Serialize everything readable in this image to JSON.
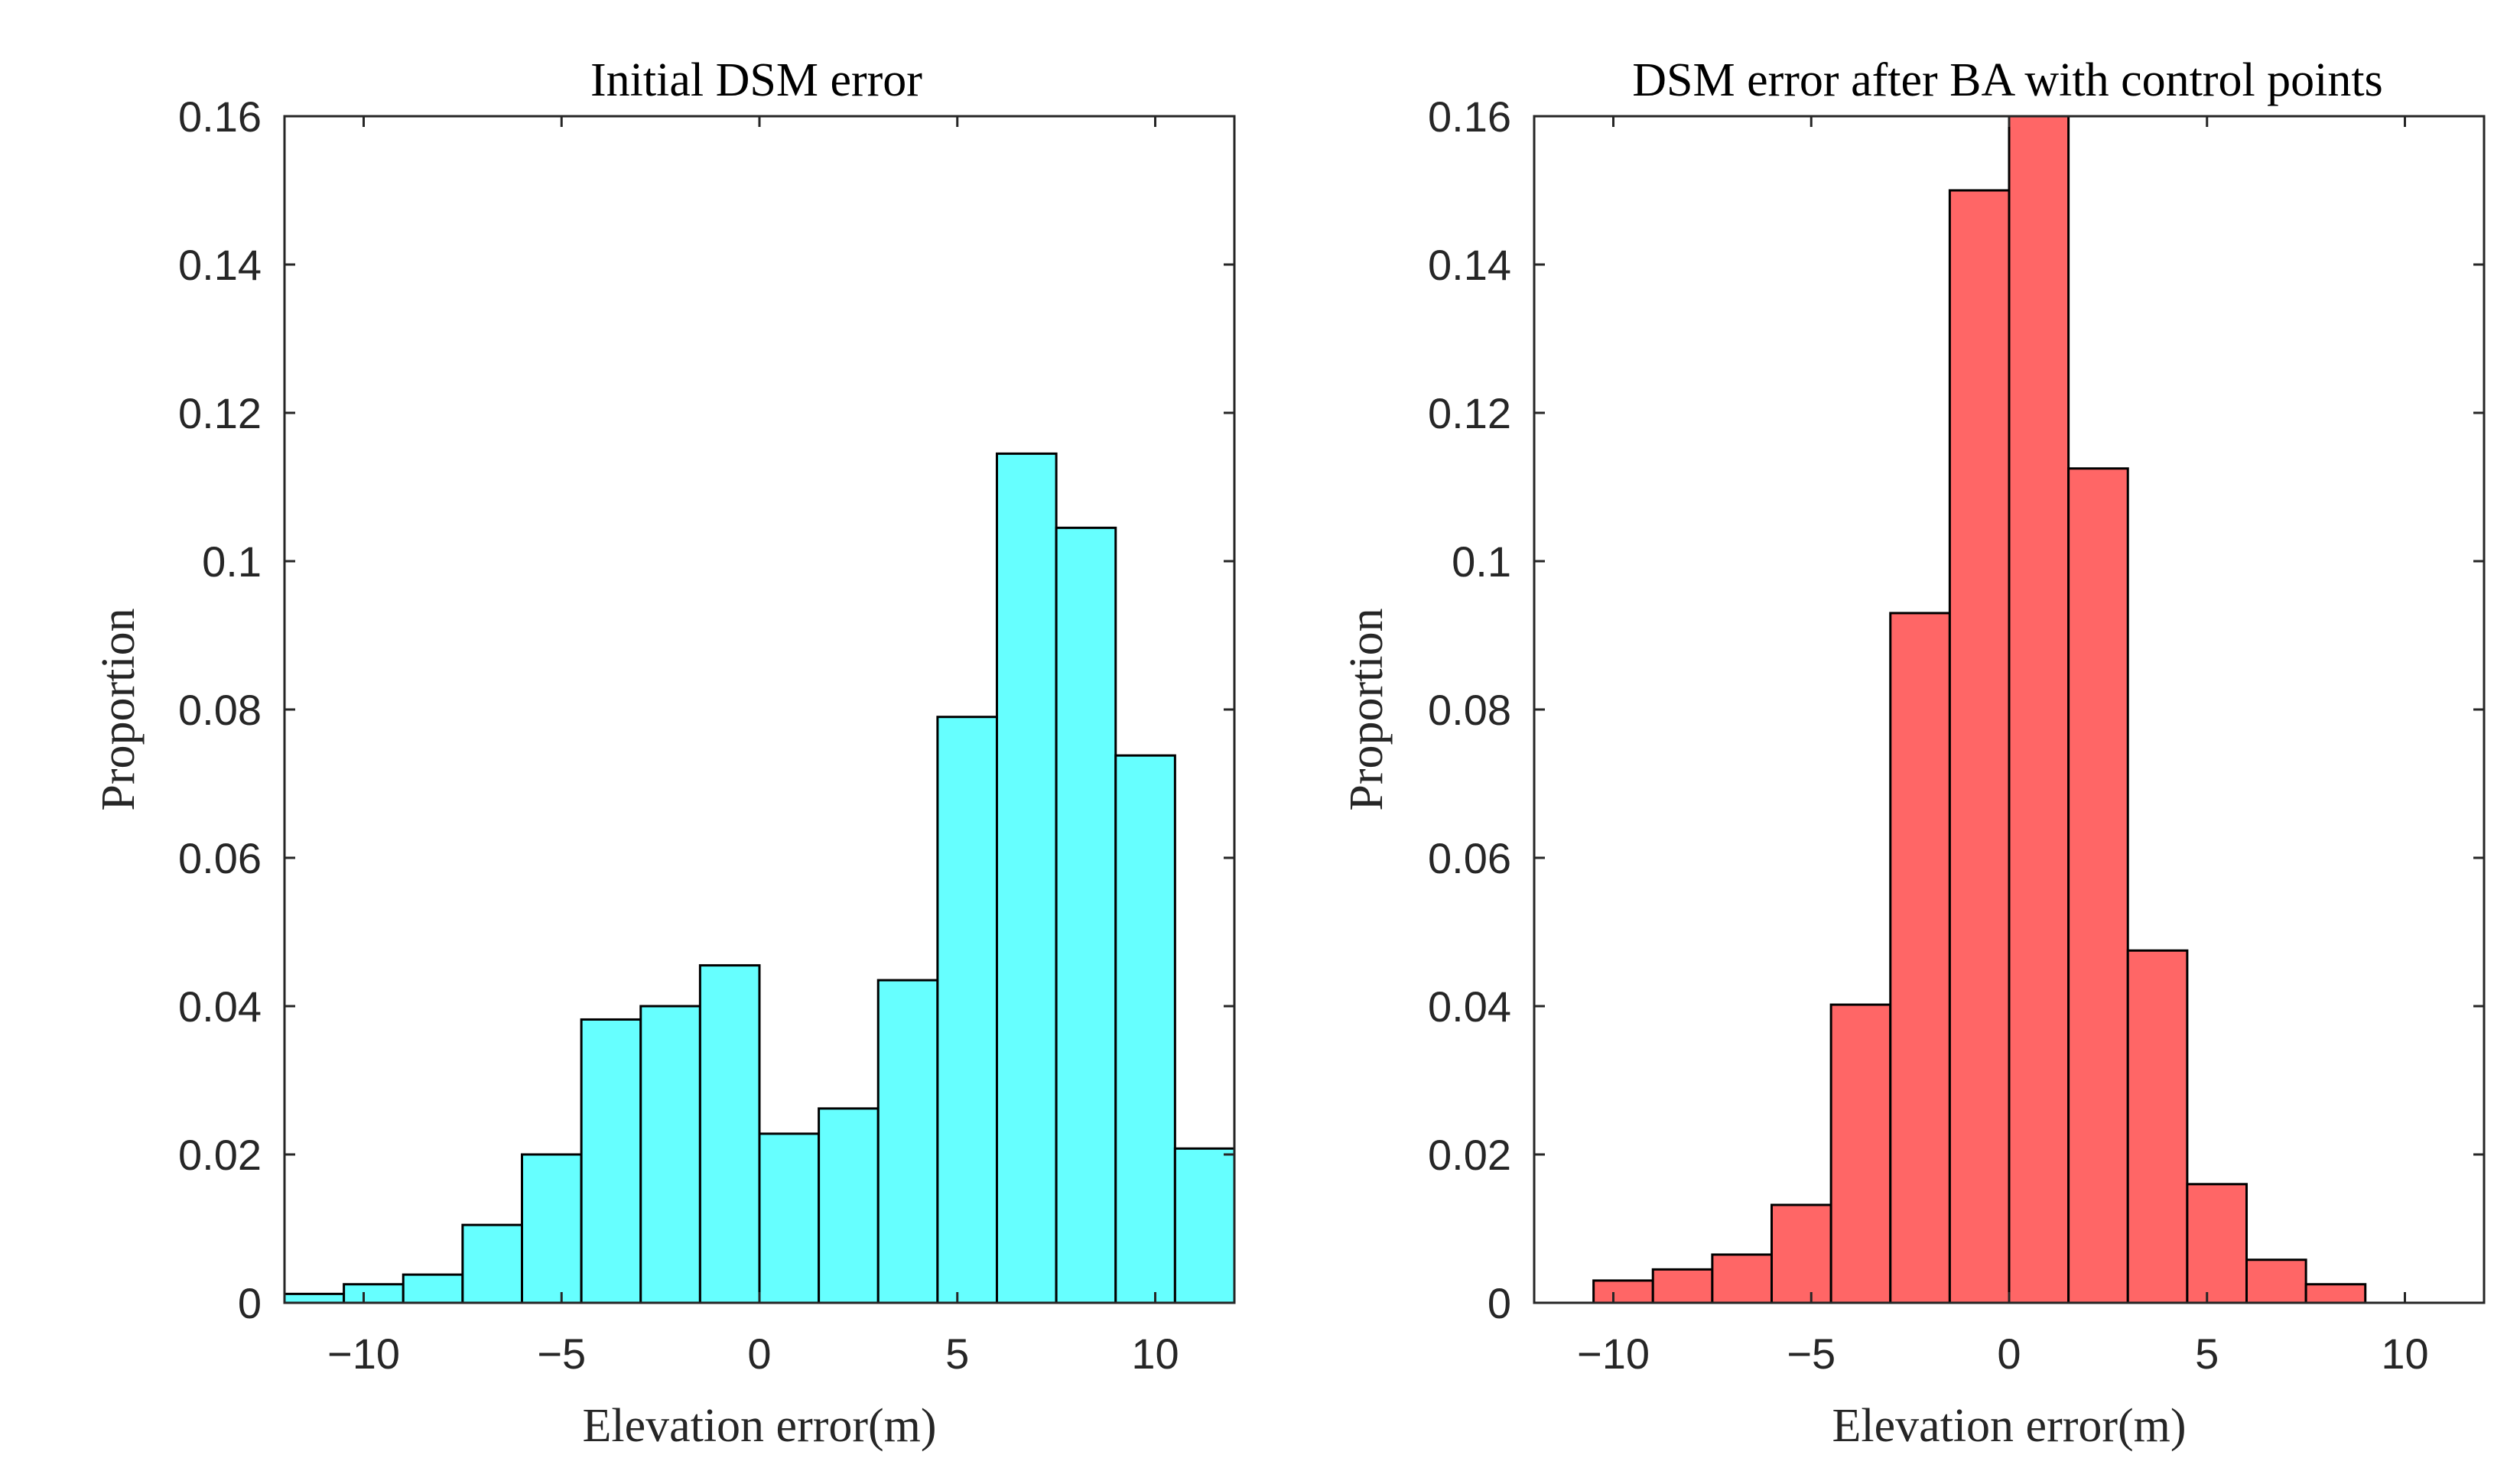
{
  "chart_data": [
    {
      "type": "bar",
      "title": "Initial DSM error",
      "xlabel": "Elevation error(m)",
      "ylabel": "Proportion",
      "xlim": [
        -12,
        12
      ],
      "ylim": [
        0,
        0.16
      ],
      "x_ticks": [
        -10,
        -5,
        0,
        5,
        10
      ],
      "x_tick_labels": [
        "−10",
        "−5",
        "0",
        "5",
        "10"
      ],
      "y_ticks": [
        0,
        0.02,
        0.04,
        0.06,
        0.08,
        0.1,
        0.12,
        0.14,
        0.16
      ],
      "y_tick_labels": [
        "0",
        "0.02",
        "0.04",
        "0.06",
        "0.08",
        "0.1",
        "0.12",
        "0.14",
        "0.16"
      ],
      "bin_edges": [
        -12,
        -10.5,
        -9,
        -7.5,
        -6,
        -4.5,
        -3,
        -1.5,
        0,
        1.5,
        3,
        4.5,
        6,
        7.5,
        9,
        10.5,
        12
      ],
      "values": [
        0.0012,
        0.0025,
        0.0038,
        0.0105,
        0.02,
        0.0382,
        0.04,
        0.0455,
        0.0228,
        0.0262,
        0.0435,
        0.079,
        0.1145,
        0.1045,
        0.0738,
        0.0208
      ],
      "color": "#66FFFF",
      "edge_color": "#000000"
    },
    {
      "type": "bar",
      "title": "DSM error after BA with control points",
      "xlabel": "Elevation error(m)",
      "ylabel": "Proportion",
      "xlim": [
        -12,
        12
      ],
      "ylim": [
        0,
        0.16
      ],
      "x_ticks": [
        -10,
        -5,
        0,
        5,
        10
      ],
      "x_tick_labels": [
        "−10",
        "−5",
        "0",
        "5",
        "10"
      ],
      "y_ticks": [
        0,
        0.02,
        0.04,
        0.06,
        0.08,
        0.1,
        0.12,
        0.14,
        0.16
      ],
      "y_tick_labels": [
        "0",
        "0.02",
        "0.04",
        "0.06",
        "0.08",
        "0.1",
        "0.12",
        "0.14",
        "0.16"
      ],
      "bin_edges": [
        -10.5,
        -9,
        -7.5,
        -6,
        -4.5,
        -3,
        -1.5,
        0,
        1.5,
        3,
        4.5,
        6,
        7.5,
        9
      ],
      "values": [
        0.003,
        0.0045,
        0.0065,
        0.0132,
        0.0402,
        0.093,
        0.15,
        0.16,
        0.1125,
        0.0475,
        0.016,
        0.0058,
        0.0025
      ],
      "color": "#FF6666",
      "edge_color": "#000000"
    }
  ]
}
